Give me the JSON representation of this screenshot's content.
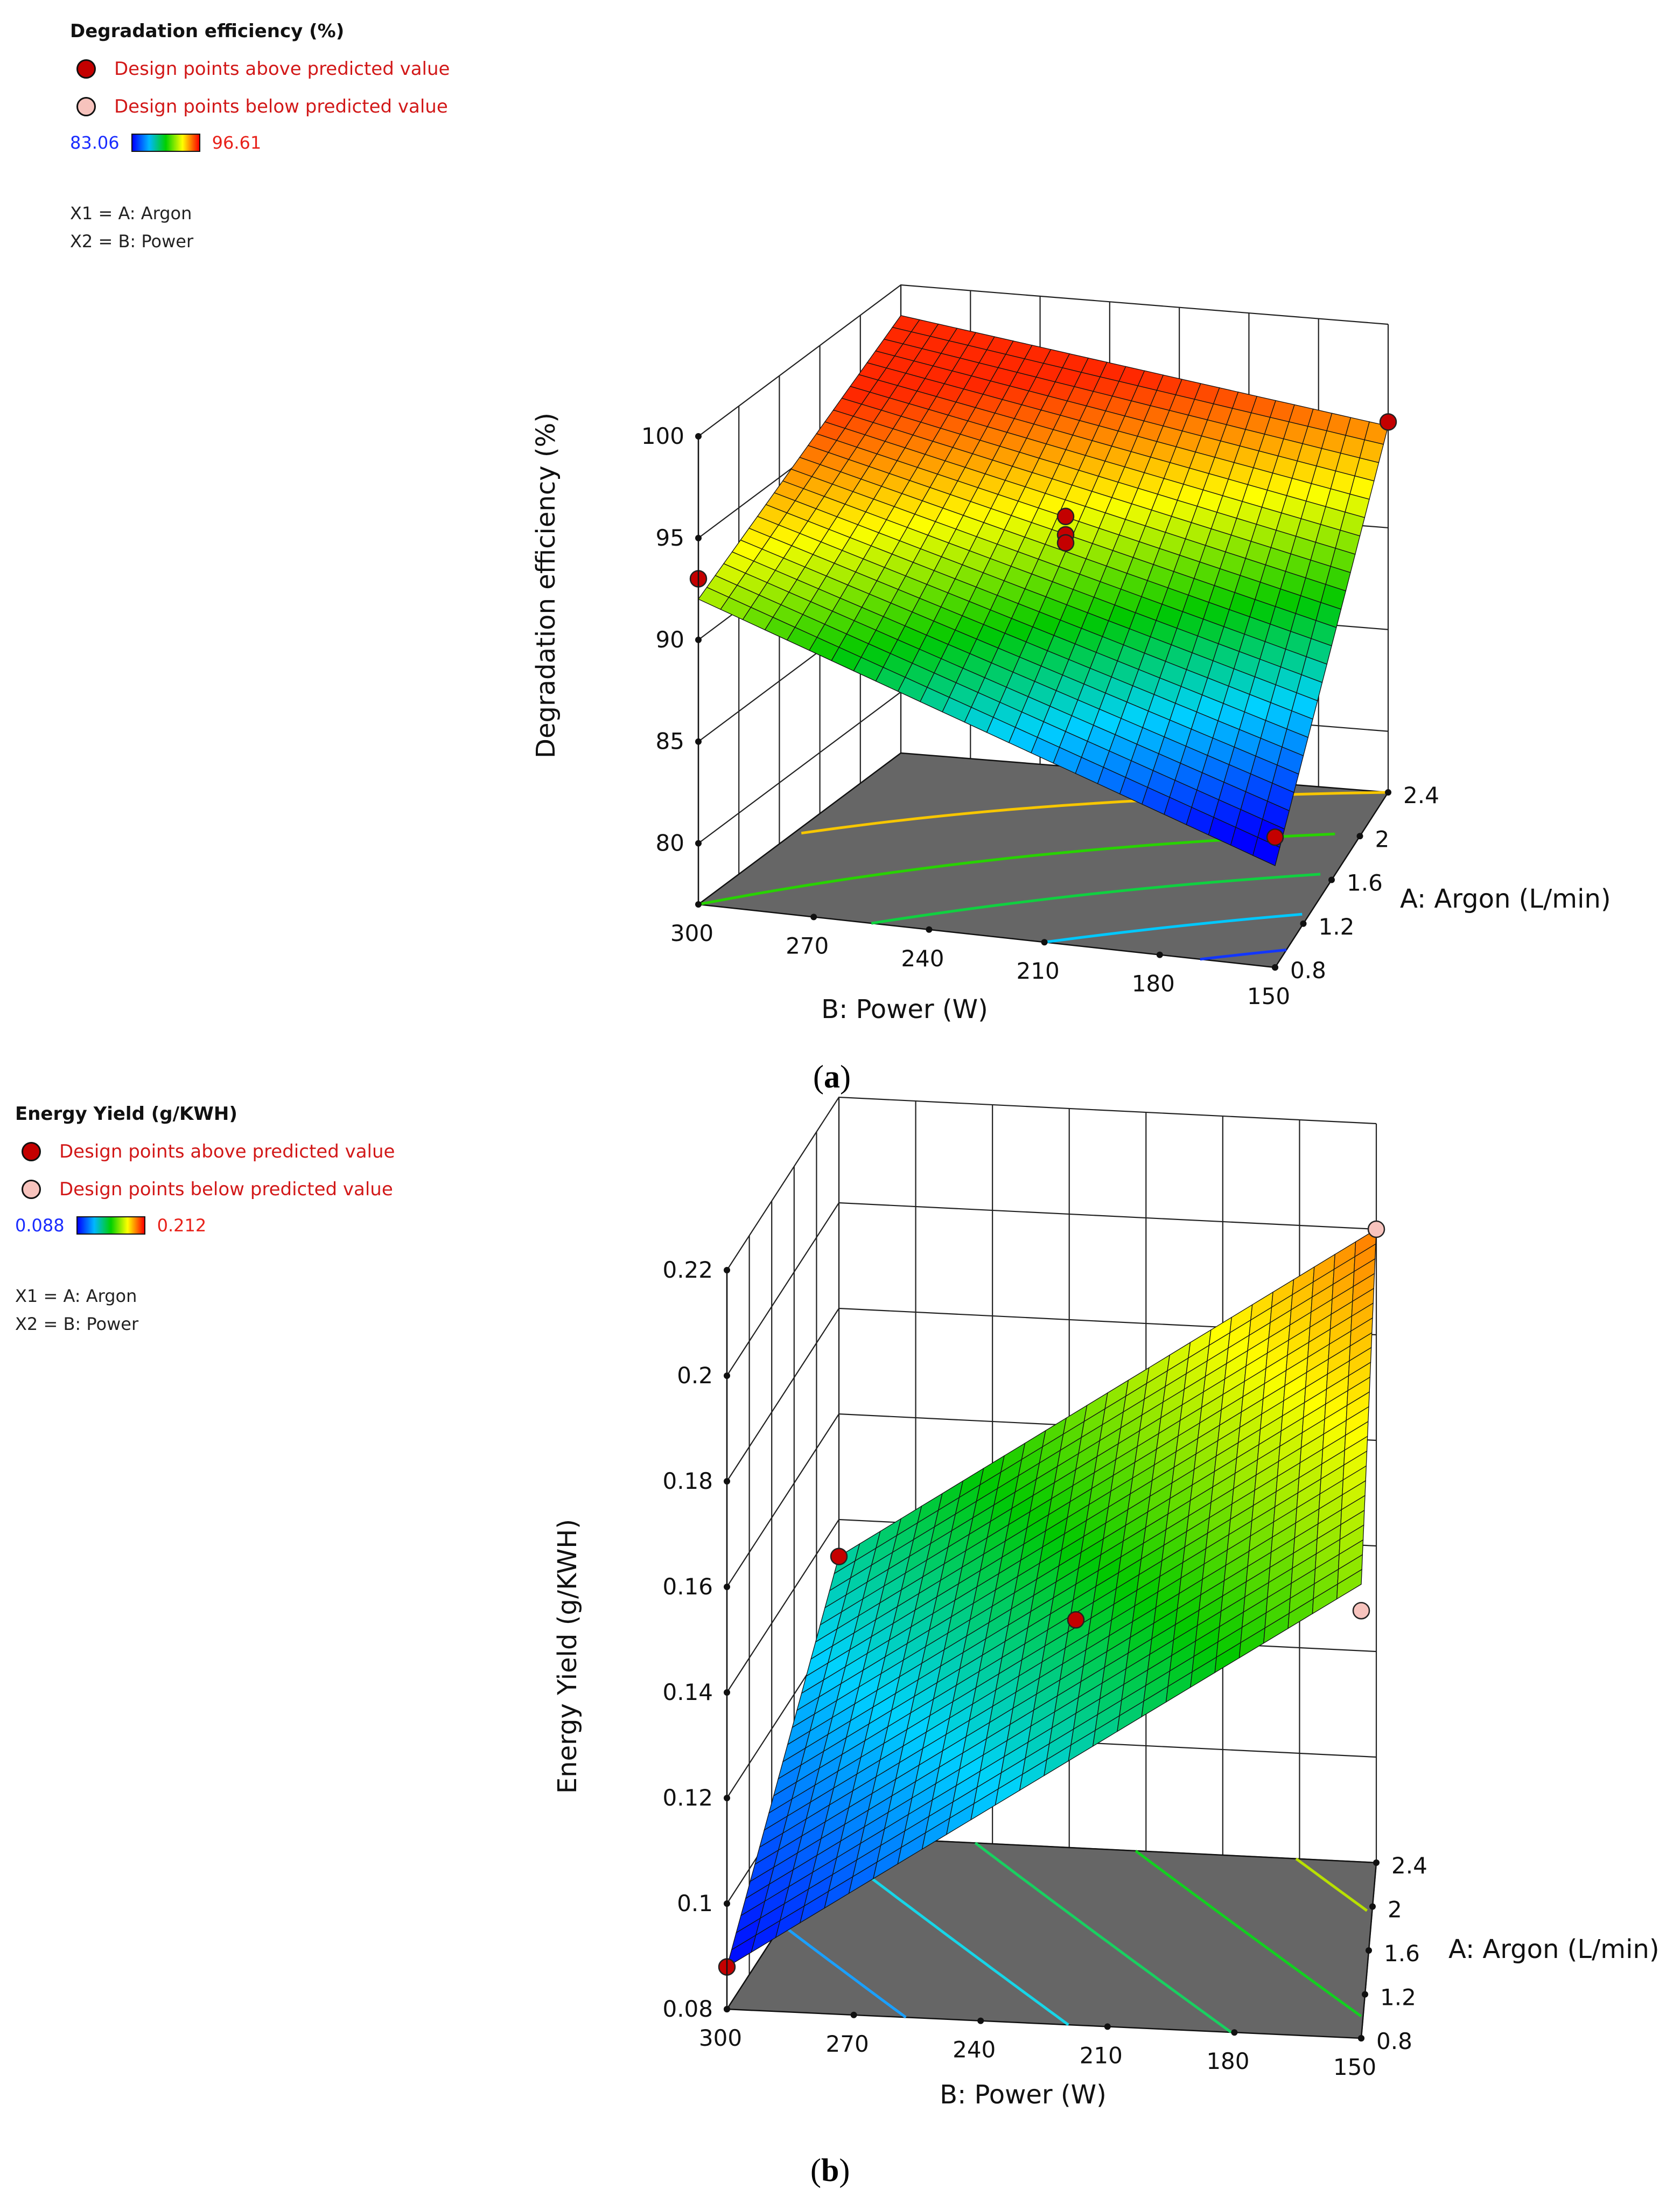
{
  "chart_data": [
    {
      "type": "surface3d",
      "panel_label": "a",
      "legend": {
        "title": "Degradation efficiency (%)",
        "above_label": "Design points above predicted value",
        "below_label": "Design points below predicted value",
        "color_min": "83.06",
        "color_max": "96.61",
        "x1": "X1 = A: Argon",
        "x2": "X2 = B: Power"
      },
      "zlabel": "Degradation efficiency (%)",
      "xlabel": "B: Power (W)",
      "ylabel": "A: Argon (L/min)",
      "z_ticks": [
        "80",
        "85",
        "90",
        "95",
        "100"
      ],
      "x_ticks": [
        "300",
        "270",
        "240",
        "210",
        "180",
        "150"
      ],
      "y_ticks": [
        "0.8",
        "1.2",
        "1.6",
        "2",
        "2.4"
      ],
      "xlim": [
        300,
        150
      ],
      "ylim": [
        0.8,
        2.4
      ],
      "zlim": [
        77,
        100
      ],
      "surface": {
        "B_values": [
          300,
          150
        ],
        "A_values": [
          0.8,
          2.4
        ],
        "z": [
          [
            92,
            98.5
          ],
          [
            82,
            95
          ]
        ]
      },
      "contours": [
        {
          "level": 95,
          "color": "#f7c600"
        },
        {
          "level": 92,
          "color": "#28d200"
        },
        {
          "level": 89,
          "color": "#10d040"
        },
        {
          "level": 86,
          "color": "#00c8ff"
        },
        {
          "level": 83.3,
          "color": "#1236ff"
        }
      ],
      "points": [
        {
          "B": 300,
          "A": 0.8,
          "z": 93,
          "status": "above"
        },
        {
          "B": 150,
          "A": 2.4,
          "z": 95.2,
          "status": "above"
        },
        {
          "B": 225,
          "A": 1.6,
          "z": 93.6,
          "status": "above"
        },
        {
          "B": 225,
          "A": 1.6,
          "z": 92.7,
          "status": "above"
        },
        {
          "B": 225,
          "A": 1.6,
          "z": 92.3,
          "status": "above"
        },
        {
          "B": 150,
          "A": 0.8,
          "z": 83.4,
          "status": "above"
        }
      ]
    },
    {
      "type": "surface3d",
      "panel_label": "b",
      "legend": {
        "title": "Energy Yield (g/KWH)",
        "above_label": "Design points above predicted value",
        "below_label": "Design points below predicted value",
        "color_min": "0.088",
        "color_max": "0.212",
        "x1": "X1 = A: Argon",
        "x2": "X2 = B: Power"
      },
      "zlabel": "Energy Yield (g/KWH)",
      "xlabel": "B: Power (W)",
      "ylabel": "A: Argon (L/min)",
      "z_ticks": [
        "0.08",
        "0.1",
        "0.12",
        "0.14",
        "0.16",
        "0.18",
        "0.2",
        "0.22"
      ],
      "x_ticks": [
        "300",
        "270",
        "240",
        "210",
        "180",
        "150"
      ],
      "y_ticks": [
        "0.8",
        "1.2",
        "1.6",
        "2",
        "2.4"
      ],
      "xlim": [
        300,
        150
      ],
      "ylim": [
        0.8,
        2.4
      ],
      "zlim": [
        0.08,
        0.22
      ],
      "surface": {
        "B_values": [
          300,
          150
        ],
        "A_values": [
          0.8,
          2.4
        ],
        "z": [
          [
            0.088,
            0.133
          ],
          [
            0.166,
            0.2
          ]
        ]
      },
      "contours": [
        {
          "level": 0.11,
          "color": "#1aa0ff"
        },
        {
          "level": 0.13,
          "color": "#16d6e8"
        },
        {
          "level": 0.15,
          "color": "#18d060"
        },
        {
          "level": 0.17,
          "color": "#12d020"
        },
        {
          "level": 0.19,
          "color": "#b8e000"
        }
      ],
      "points": [
        {
          "B": 300,
          "A": 0.8,
          "z": 0.088,
          "status": "above"
        },
        {
          "B": 300,
          "A": 2.4,
          "z": 0.133,
          "status": "above"
        },
        {
          "B": 225,
          "A": 1.6,
          "z": 0.14,
          "status": "above"
        },
        {
          "B": 150,
          "A": 2.4,
          "z": 0.2,
          "status": "below"
        },
        {
          "B": 150,
          "A": 0.8,
          "z": 0.161,
          "status": "below"
        }
      ]
    }
  ]
}
